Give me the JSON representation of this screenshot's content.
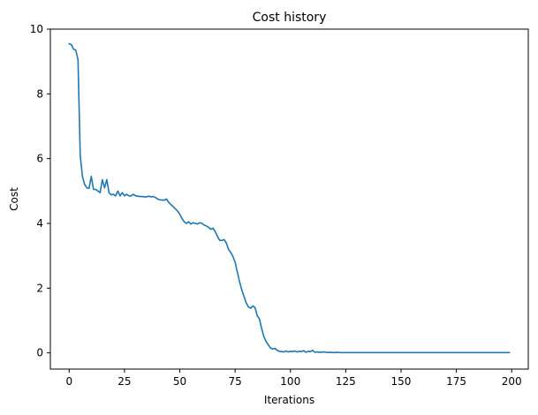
{
  "chart_data": {
    "type": "line",
    "title": "Cost history",
    "xlabel": "Iterations",
    "ylabel": "Cost",
    "xlim": [
      -8.5,
      207.5
    ],
    "ylim": [
      -0.5,
      10
    ],
    "xticks": [
      0,
      25,
      50,
      75,
      100,
      125,
      150,
      175,
      200
    ],
    "yticks": [
      0,
      2,
      4,
      6,
      8,
      10
    ],
    "grid": false,
    "legend": "none",
    "series": [
      {
        "color": "#1f77b4",
        "x": [
          0,
          1,
          2,
          3,
          4,
          5,
          6,
          7,
          8,
          9,
          10,
          11,
          12,
          13,
          14,
          15,
          16,
          17,
          18,
          19,
          20,
          21,
          22,
          23,
          24,
          25,
          26,
          27,
          28,
          29,
          30,
          31,
          32,
          33,
          34,
          35,
          36,
          37,
          38,
          39,
          40,
          41,
          42,
          43,
          44,
          45,
          46,
          47,
          48,
          49,
          50,
          51,
          52,
          53,
          54,
          55,
          56,
          57,
          58,
          59,
          60,
          61,
          62,
          63,
          64,
          65,
          66,
          67,
          68,
          69,
          70,
          71,
          72,
          73,
          74,
          75,
          76,
          77,
          78,
          79,
          80,
          81,
          82,
          83,
          84,
          85,
          86,
          87,
          88,
          89,
          90,
          91,
          92,
          93,
          94,
          95,
          96,
          97,
          98,
          99,
          100,
          101,
          102,
          103,
          104,
          105,
          106,
          107,
          108,
          109,
          110,
          111,
          112,
          113,
          114,
          115,
          116,
          117,
          118,
          119,
          120,
          121,
          122,
          123,
          124,
          125,
          130,
          140,
          150,
          160,
          170,
          180,
          190,
          199
        ],
        "y": [
          9.55,
          9.52,
          9.38,
          9.35,
          9.05,
          6.1,
          5.45,
          5.2,
          5.1,
          5.08,
          5.45,
          5.05,
          5.05,
          5.0,
          4.95,
          5.35,
          5.1,
          5.35,
          4.95,
          4.88,
          4.9,
          4.85,
          5.0,
          4.85,
          4.95,
          4.85,
          4.9,
          4.85,
          4.85,
          4.9,
          4.85,
          4.84,
          4.83,
          4.83,
          4.82,
          4.82,
          4.84,
          4.82,
          4.83,
          4.8,
          4.75,
          4.73,
          4.72,
          4.72,
          4.75,
          4.65,
          4.58,
          4.52,
          4.45,
          4.38,
          4.28,
          4.15,
          4.05,
          4.0,
          4.05,
          3.98,
          4.02,
          4.0,
          3.98,
          4.02,
          4.0,
          3.95,
          3.92,
          3.88,
          3.82,
          3.85,
          3.75,
          3.6,
          3.48,
          3.47,
          3.5,
          3.4,
          3.2,
          3.1,
          2.98,
          2.8,
          2.5,
          2.2,
          1.95,
          1.75,
          1.55,
          1.42,
          1.38,
          1.45,
          1.4,
          1.15,
          1.05,
          0.75,
          0.5,
          0.35,
          0.25,
          0.15,
          0.12,
          0.14,
          0.08,
          0.05,
          0.04,
          0.03,
          0.06,
          0.03,
          0.05,
          0.04,
          0.06,
          0.03,
          0.05,
          0.04,
          0.07,
          0.02,
          0.05,
          0.04,
          0.08,
          0.02,
          0.03,
          0.02,
          0.02,
          0.03,
          0.02,
          0.01,
          0.02,
          0.01,
          0.01,
          0.02,
          0.01,
          0.01,
          0.01,
          0.01,
          0.01,
          0.01,
          0.01,
          0.01,
          0.01,
          0.01,
          0.01,
          0.01
        ]
      }
    ]
  }
}
